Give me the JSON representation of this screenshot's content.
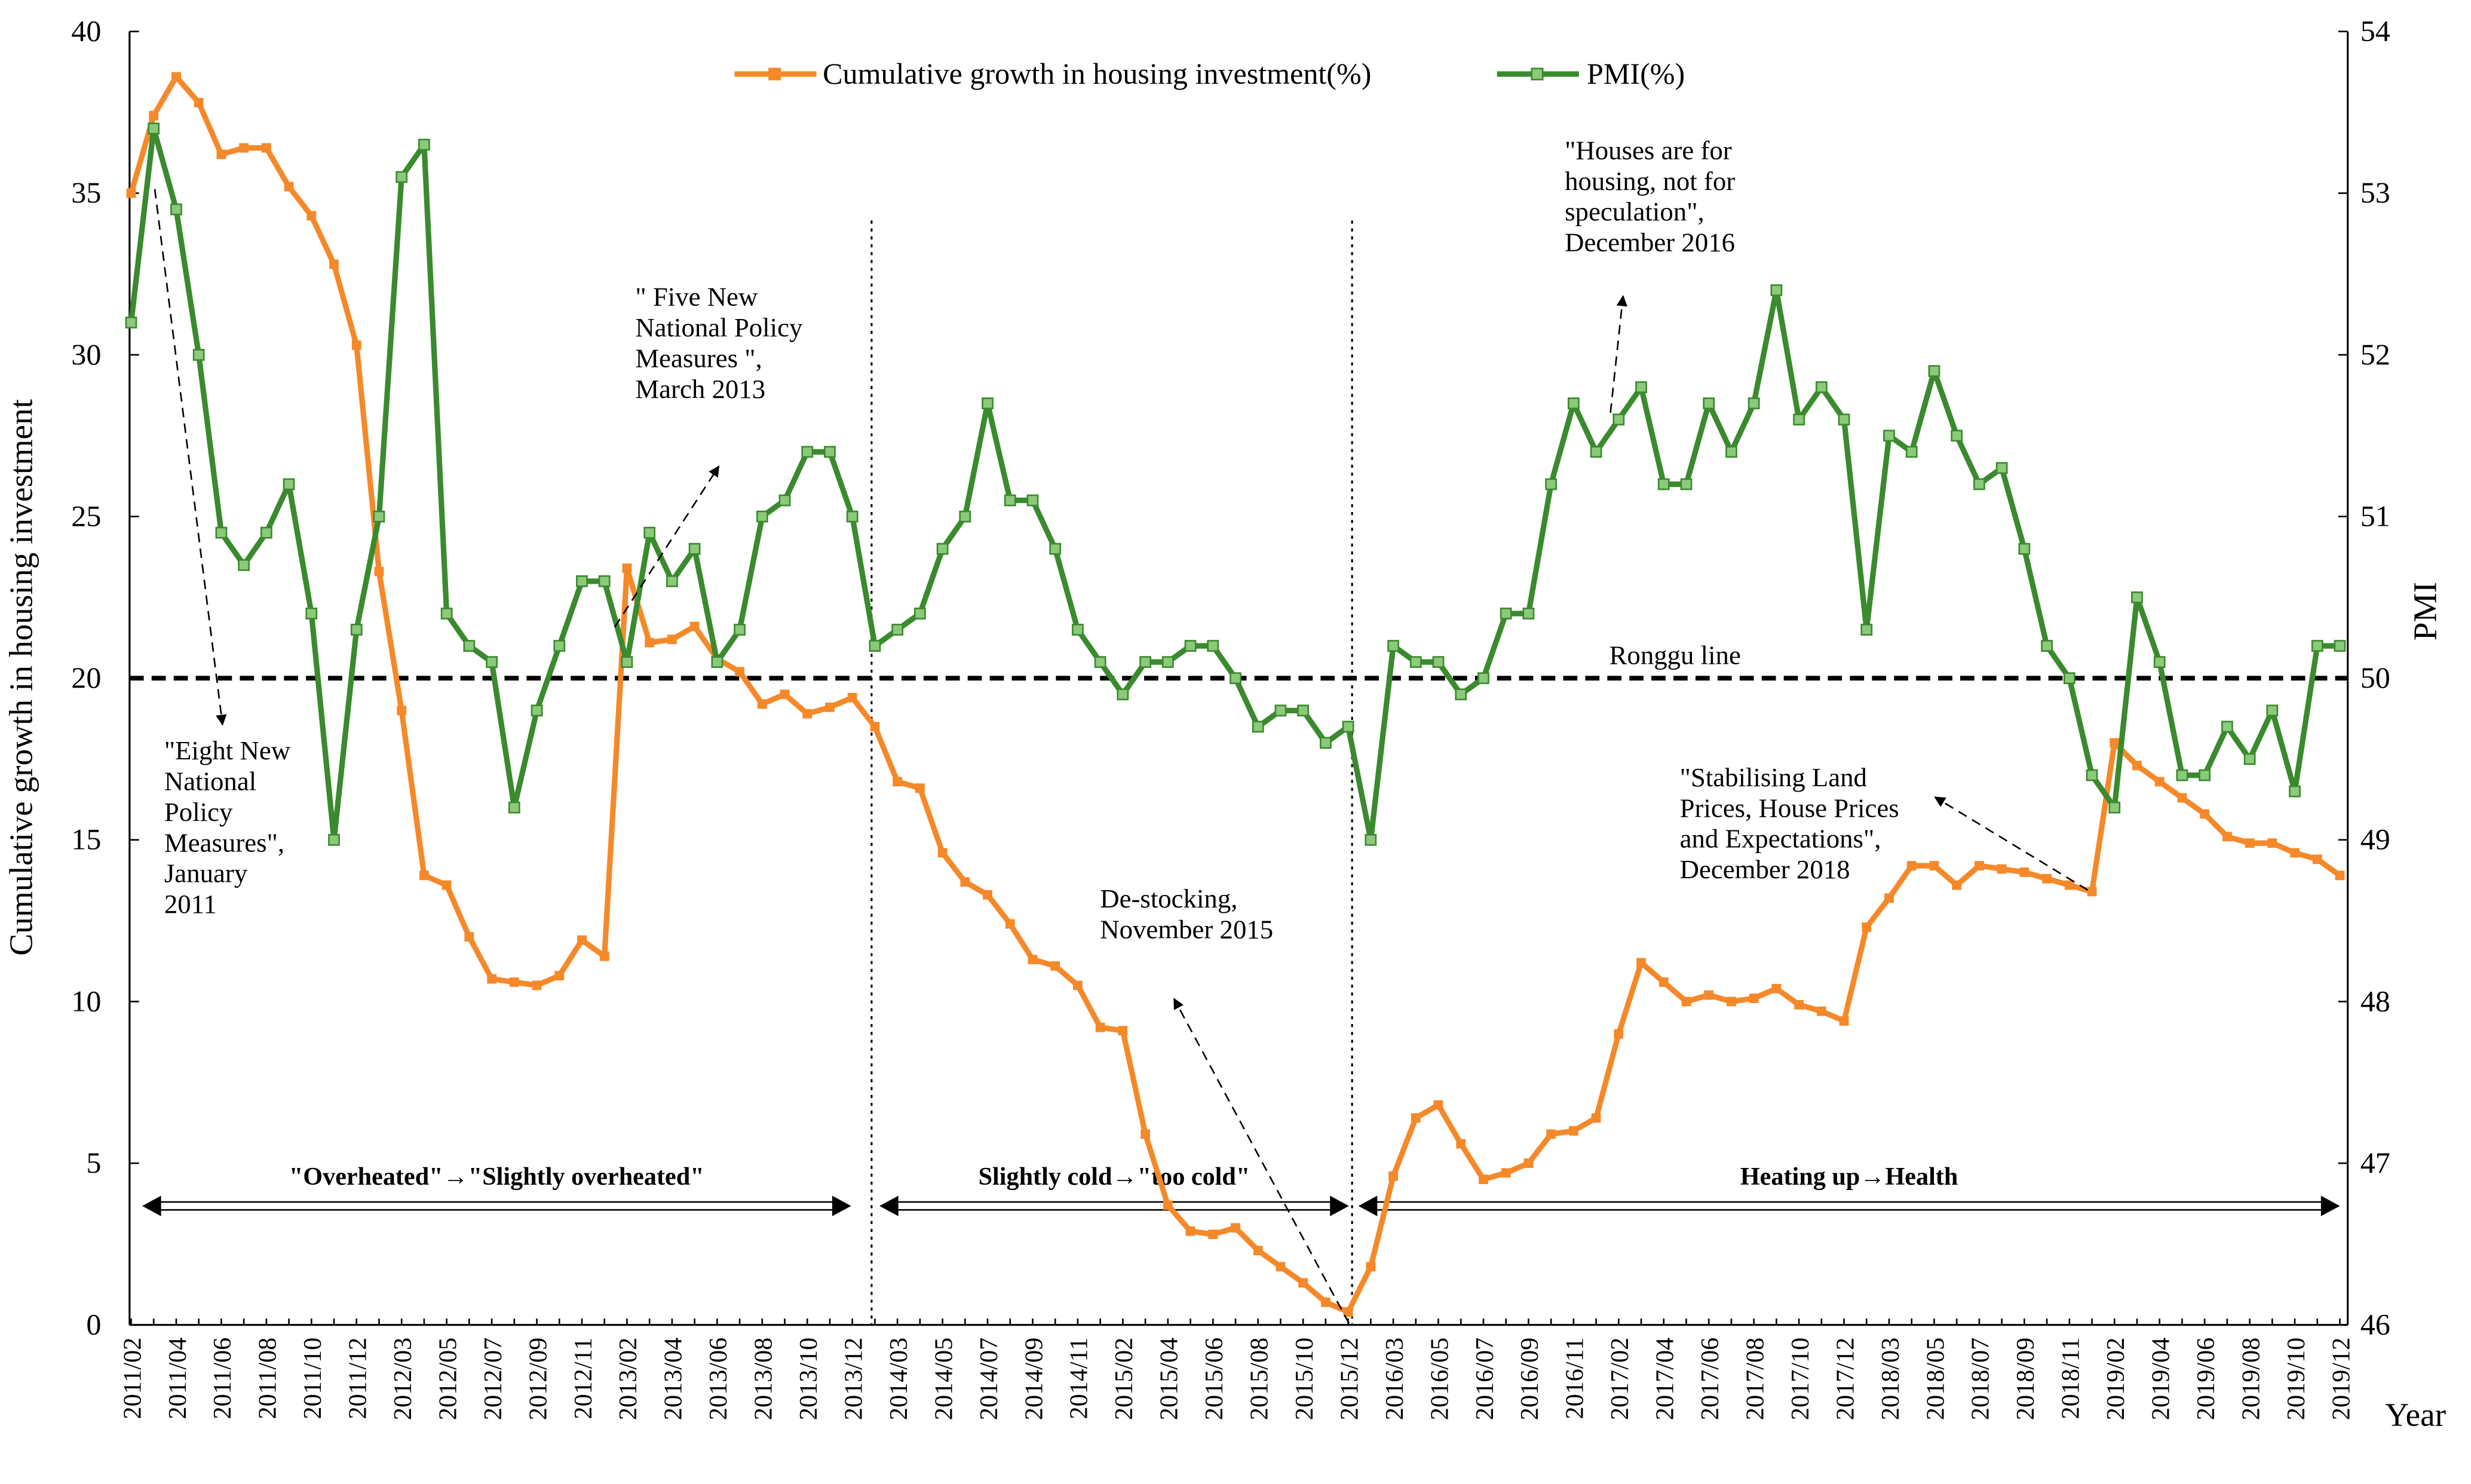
{
  "chart_data": {
    "type": "line",
    "categories": [
      "2011/02",
      null,
      "2011/04",
      null,
      "2011/06",
      null,
      "2011/08",
      null,
      "2011/10",
      null,
      "2011/12",
      null,
      "2012/03",
      null,
      "2012/05",
      null,
      "2012/07",
      null,
      "2012/09",
      null,
      "2012/11",
      null,
      "2013/02",
      null,
      "2013/04",
      null,
      "2013/06",
      null,
      "2013/08",
      null,
      "2013/10",
      null,
      "2013/12",
      null,
      "2014/03",
      null,
      "2014/05",
      null,
      "2014/07",
      null,
      "2014/09",
      null,
      "2014/11",
      null,
      "2015/02",
      null,
      "2015/04",
      null,
      "2015/06",
      null,
      "2015/08",
      null,
      "2015/10",
      null,
      "2015/12",
      null,
      "2016/03",
      null,
      "2016/05",
      null,
      "2016/07",
      null,
      "2016/09",
      null,
      "2016/11",
      null,
      "2017/02",
      null,
      "2017/04",
      null,
      "2017/06",
      null,
      "2017/08",
      null,
      "2017/10",
      null,
      "2017/12",
      null,
      "2018/03",
      null,
      "2018/05",
      null,
      "2018/07",
      null,
      "2018/09",
      null,
      "2018/11",
      null,
      "2019/02",
      null,
      "2019/04",
      null,
      "2019/06",
      null,
      "2019/08",
      null,
      "2019/10",
      null,
      "2019/12"
    ],
    "series": [
      {
        "name": "Cumulative growth in housing investment(%)",
        "color": "#f5892a",
        "values": [
          35.0,
          37.4,
          38.6,
          37.8,
          36.2,
          36.4,
          36.4,
          35.2,
          34.3,
          32.8,
          30.3,
          23.3,
          19.0,
          13.9,
          13.6,
          12.0,
          10.7,
          10.6,
          10.5,
          10.8,
          11.9,
          11.4,
          23.4,
          21.1,
          21.2,
          21.6,
          20.6,
          20.2,
          19.2,
          19.5,
          18.9,
          19.1,
          19.4,
          18.5,
          16.8,
          16.6,
          14.6,
          13.7,
          13.3,
          12.4,
          11.3,
          11.1,
          10.5,
          9.2,
          9.1,
          5.9,
          3.7,
          2.9,
          2.8,
          3.0,
          2.3,
          1.8,
          1.3,
          0.7,
          0.4,
          1.8,
          4.6,
          6.4,
          6.8,
          5.6,
          4.5,
          4.7,
          5.0,
          5.9,
          6.0,
          6.4,
          9.0,
          11.2,
          10.6,
          10.0,
          10.2,
          10.0,
          10.1,
          10.4,
          9.9,
          9.7,
          9.4,
          12.3,
          13.2,
          14.2,
          14.2,
          13.6,
          14.2,
          14.1,
          14.0,
          13.8,
          13.6,
          13.4,
          18.0,
          17.3,
          16.8,
          16.3,
          15.8,
          15.1,
          14.9,
          14.9,
          14.6,
          14.4,
          13.9
        ]
      },
      {
        "name": "PMI(%)",
        "color": "#3a8a2e",
        "axis": "y2",
        "values": [
          52.2,
          53.4,
          52.9,
          52.0,
          50.9,
          50.7,
          50.9,
          51.2,
          50.4,
          49.0,
          50.3,
          51.0,
          53.1,
          53.3,
          50.4,
          50.2,
          50.1,
          49.2,
          49.8,
          50.2,
          50.6,
          50.6,
          50.1,
          50.9,
          50.6,
          50.8,
          50.1,
          50.3,
          51.0,
          51.1,
          51.4,
          51.4,
          51.0,
          50.2,
          50.3,
          50.4,
          50.8,
          51.0,
          51.7,
          51.1,
          51.1,
          50.8,
          50.3,
          50.1,
          49.9,
          50.1,
          50.1,
          50.2,
          50.2,
          50.0,
          49.7,
          49.8,
          49.8,
          49.6,
          49.7,
          49.0,
          50.2,
          50.1,
          50.1,
          49.9,
          50.0,
          50.4,
          50.4,
          51.2,
          51.7,
          51.4,
          51.6,
          51.8,
          51.2,
          51.2,
          51.7,
          51.4,
          51.7,
          52.4,
          51.6,
          51.8,
          51.6,
          50.3,
          51.5,
          51.4,
          51.9,
          51.5,
          51.2,
          51.3,
          50.8,
          50.2,
          50.0,
          49.4,
          49.2,
          50.5,
          50.1,
          49.4,
          49.4,
          49.7,
          49.5,
          49.8,
          49.3,
          50.2,
          50.2
        ]
      }
    ],
    "ylabel": "Cumulative growth in housing investment",
    "y2label": "PMI",
    "xlabel": "Year",
    "ylim": [
      0,
      40
    ],
    "yticks": [
      0,
      5,
      10,
      15,
      20,
      25,
      30,
      35,
      40
    ],
    "y2lim": [
      46,
      54
    ],
    "y2ticks": [
      46,
      47,
      48,
      49,
      50,
      51,
      52,
      53,
      54
    ],
    "reference_line": {
      "axis": "y2",
      "value": 50,
      "label": "Ronggu line",
      "style": "dashed"
    },
    "periods": [
      "\"Overheated\"→\"Slightly overheated\"",
      "Slightly cold→\"too cold\"",
      "Heating up→Health"
    ],
    "annotations": [
      {
        "lines": [
          "\"Eight New",
          "National",
          "Policy",
          "Measures\",",
          "January",
          "2011"
        ]
      },
      {
        "lines": [
          "\" Five New",
          "National Policy",
          "Measures \",",
          "March 2013"
        ]
      },
      {
        "lines": [
          "\"Houses are for",
          "housing, not for",
          "speculation\",",
          "December 2016"
        ]
      },
      {
        "lines": [
          "\"Stabilising Land",
          "Prices, House Prices",
          "and Expectations\",",
          "December 2018"
        ]
      },
      {
        "lines": [
          "De-stocking,",
          "November 2015"
        ]
      }
    ],
    "legend": "top",
    "grid": false
  }
}
